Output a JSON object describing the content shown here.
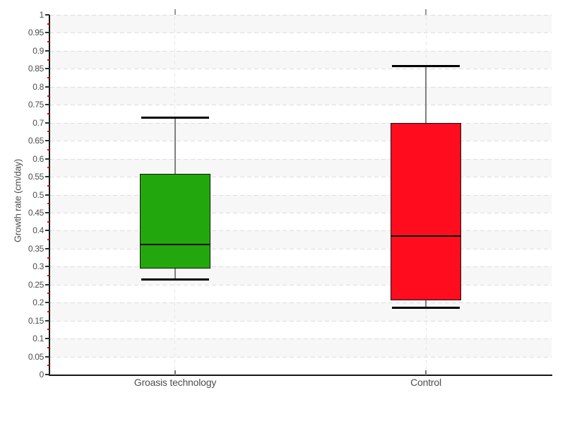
{
  "page": {
    "background": "#ffffff"
  },
  "chart_data": {
    "type": "boxplot",
    "title": "",
    "xlabel": "",
    "ylabel": "Growth rate (cm/day)",
    "ylim": [
      0,
      1
    ],
    "ytick_step": 0.05,
    "minor_tick_step": 0.025,
    "grid": "dashed horizontal gridline at every 0.05 with alternating light-gray bands; dashed vertical gridline at each category center",
    "legend": "none",
    "categories": [
      "Groasis technology",
      "Control"
    ],
    "yticks": [
      "0",
      "0.05",
      "0.1",
      "0.15",
      "0.2",
      "0.25",
      "0.3",
      "0.35",
      "0.4",
      "0.45",
      "0.5",
      "0.55",
      "0.6",
      "0.65",
      "0.7",
      "0.75",
      "0.8",
      "0.85",
      "0.9",
      "0.95",
      "1"
    ],
    "series": [
      {
        "name": "Groasis technology",
        "fill": "#22a80d",
        "min": 0.265,
        "q1": 0.293,
        "median": 0.361,
        "q3": 0.557,
        "max": 0.715
      },
      {
        "name": "Control",
        "fill": "#ff0d1e",
        "min": 0.185,
        "q1": 0.207,
        "median": 0.386,
        "q3": 0.7,
        "max": 0.857
      }
    ],
    "colors": {
      "band": "#f7f7f7",
      "gridline": "#dedede",
      "category_gridline": "#e7e7e7",
      "axis": "#161616",
      "major_tick": "#333333",
      "minor_tick": "#ff0000",
      "tick_label": "#4d4d4d",
      "whisker_line": "#808080",
      "whisker_cap": "#000000",
      "box_border": "#141414",
      "median": "#000000"
    }
  }
}
